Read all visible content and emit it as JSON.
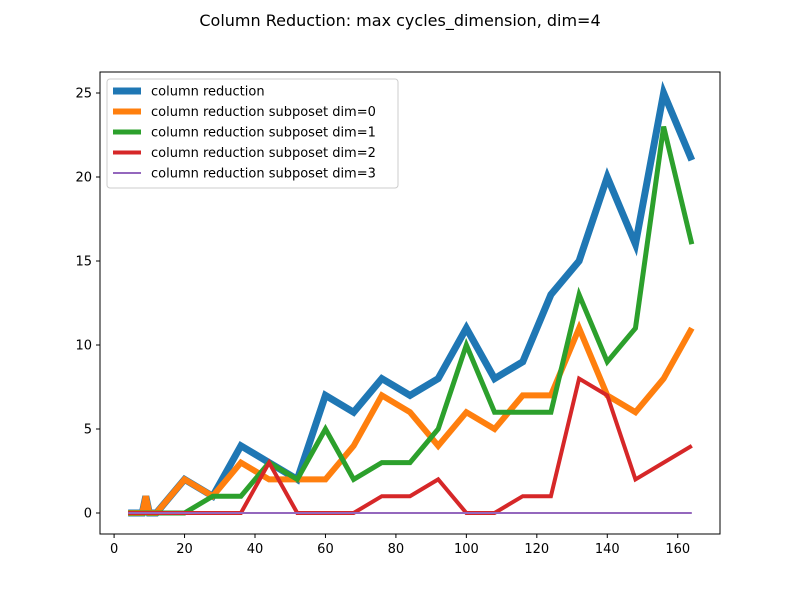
{
  "chart_data": {
    "type": "line",
    "title": "Column Reduction: max cycles_dimension, dim=4",
    "xlabel": "",
    "ylabel": "",
    "xlim": [
      -4,
      172
    ],
    "ylim": [
      -1.25,
      26.25
    ],
    "xticks": [
      0,
      20,
      40,
      60,
      80,
      100,
      120,
      140,
      160
    ],
    "yticks": [
      0,
      5,
      10,
      15,
      20,
      25
    ],
    "grid": false,
    "legend_position": "top-left",
    "x": [
      4,
      8,
      9,
      10,
      12,
      20,
      28,
      36,
      44,
      52,
      60,
      68,
      76,
      84,
      92,
      100,
      108,
      116,
      124,
      132,
      140,
      148,
      156,
      164
    ],
    "series": [
      {
        "name": "column reduction",
        "color": "#1f77b4",
        "width": 7,
        "values": [
          0,
          0,
          1,
          0,
          0,
          2,
          1,
          4,
          3,
          2,
          7,
          6,
          8,
          7,
          8,
          11,
          8,
          9,
          13,
          15,
          20,
          16,
          25,
          21
        ]
      },
      {
        "name": "column reduction subposet dim=0",
        "color": "#ff7f0e",
        "width": 6,
        "values": [
          0,
          0,
          1,
          0,
          0,
          2,
          1,
          3,
          2,
          2,
          2,
          4,
          7,
          6,
          4,
          6,
          5,
          7,
          7,
          11,
          7,
          6,
          8,
          11
        ]
      },
      {
        "name": "column reduction subposet dim=1",
        "color": "#2ca02c",
        "width": 5,
        "values": [
          0,
          0,
          0,
          0,
          0,
          0,
          1,
          1,
          3,
          2,
          5,
          2,
          3,
          3,
          5,
          10,
          6,
          6,
          6,
          13,
          9,
          11,
          23,
          16
        ]
      },
      {
        "name": "column reduction subposet dim=2",
        "color": "#d62728",
        "width": 4,
        "values": [
          0,
          0,
          0,
          0,
          0,
          0,
          0,
          0,
          3,
          0,
          0,
          0,
          1,
          1,
          2,
          0,
          0,
          1,
          1,
          8,
          7,
          2,
          3,
          4
        ]
      },
      {
        "name": "column reduction subposet dim=3",
        "color": "#9467bd",
        "width": 2,
        "values": [
          0,
          0,
          0,
          0,
          0,
          0,
          0,
          0,
          0,
          0,
          0,
          0,
          0,
          0,
          0,
          0,
          0,
          0,
          0,
          0,
          0,
          0,
          0,
          0
        ]
      }
    ]
  }
}
